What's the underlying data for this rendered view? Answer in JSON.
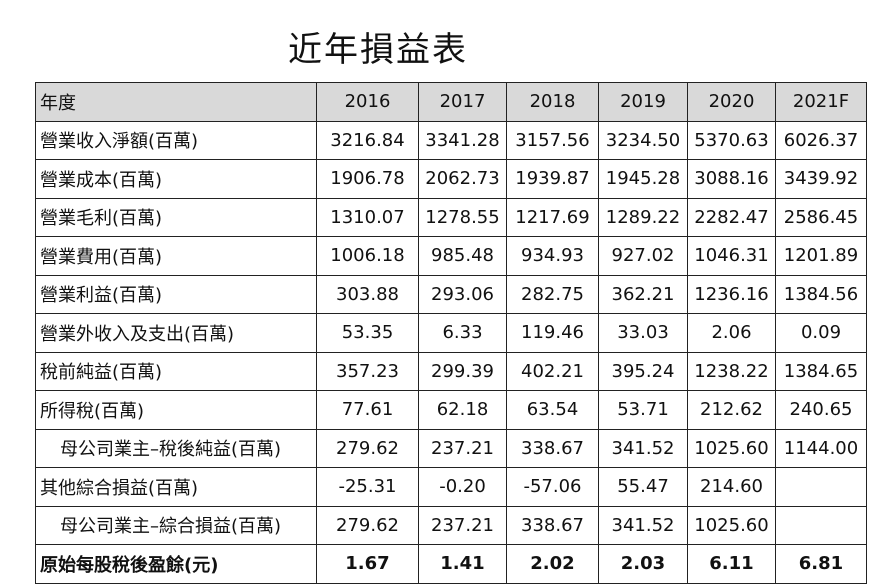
{
  "title": "近年損益表",
  "header": [
    "年度",
    "2016",
    "2017",
    "2018",
    "2019",
    "2020",
    "2021F"
  ],
  "rows": [
    {
      "label": "營業收入淨額(百萬)",
      "values": [
        "3216.84",
        "3341.28",
        "3157.56",
        "3234.50",
        "5370.63",
        "6026.37"
      ]
    },
    {
      "label": "營業成本(百萬)",
      "values": [
        "1906.78",
        "2062.73",
        "1939.87",
        "1945.28",
        "3088.16",
        "3439.92"
      ]
    },
    {
      "label": "營業毛利(百萬)",
      "values": [
        "1310.07",
        "1278.55",
        "1217.69",
        "1289.22",
        "2282.47",
        "2586.45"
      ]
    },
    {
      "label": "營業費用(百萬)",
      "values": [
        "1006.18",
        "985.48",
        "934.93",
        "927.02",
        "1046.31",
        "1201.89"
      ]
    },
    {
      "label": "營業利益(百萬)",
      "values": [
        "303.88",
        "293.06",
        "282.75",
        "362.21",
        "1236.16",
        "1384.56"
      ]
    },
    {
      "label": "營業外收入及支出(百萬)",
      "values": [
        "53.35",
        "6.33",
        "119.46",
        "33.03",
        "2.06",
        "0.09"
      ]
    },
    {
      "label": "稅前純益(百萬)",
      "values": [
        "357.23",
        "299.39",
        "402.21",
        "395.24",
        "1238.22",
        "1384.65"
      ]
    },
    {
      "label": "所得稅(百萬)",
      "values": [
        "77.61",
        "62.18",
        "63.54",
        "53.71",
        "212.62",
        "240.65"
      ]
    },
    {
      "label": "母公司業主–稅後純益(百萬)",
      "values": [
        "279.62",
        "237.21",
        "338.67",
        "341.52",
        "1025.60",
        "1144.00"
      ]
    },
    {
      "label": "其他綜合損益(百萬)",
      "values": [
        "-25.31",
        "-0.20",
        "-57.06",
        "55.47",
        "214.60",
        ""
      ]
    },
    {
      "label": "母公司業主–綜合損益(百萬)",
      "values": [
        "279.62",
        "237.21",
        "338.67",
        "341.52",
        "1025.60",
        ""
      ]
    },
    {
      "label": "原始每股稅後盈餘(元)",
      "values": [
        "1.67",
        "1.41",
        "2.02",
        "2.03",
        "6.11",
        "6.81"
      ]
    }
  ],
  "colors": {
    "header_bg": "#d9d9d9",
    "border": "#222222"
  }
}
